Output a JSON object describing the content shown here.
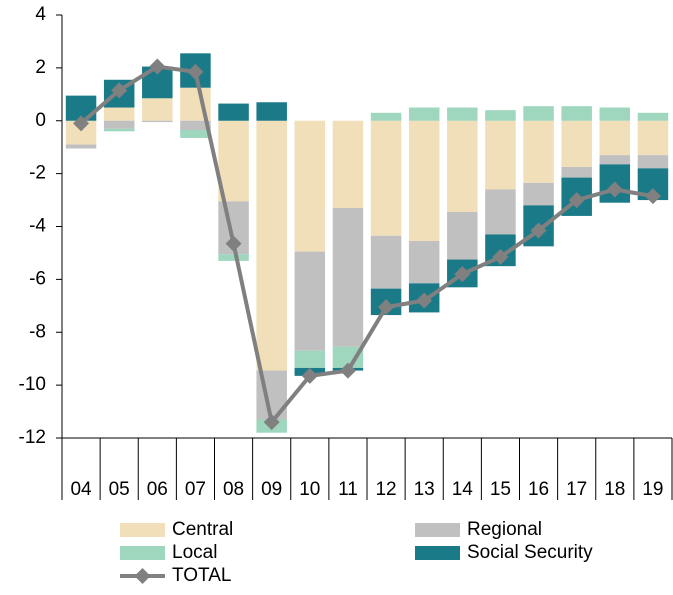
{
  "chart_data": {
    "type": "bar",
    "stacked": true,
    "categories": [
      "04",
      "05",
      "06",
      "07",
      "08",
      "09",
      "10",
      "11",
      "12",
      "13",
      "14",
      "15",
      "16",
      "17",
      "18",
      "19"
    ],
    "series": [
      {
        "name": "Central",
        "color": "#f0dfb8",
        "values": [
          -0.9,
          0.5,
          0.85,
          1.25,
          -3.05,
          -9.45,
          -4.95,
          -3.3,
          -4.35,
          -4.55,
          -3.45,
          -2.6,
          -2.35,
          -1.75,
          -1.3,
          -1.3
        ]
      },
      {
        "name": "Regional",
        "color": "#c0c0c0",
        "values": [
          -0.15,
          -0.3,
          -0.05,
          -0.35,
          -2.0,
          -1.85,
          -3.75,
          -5.25,
          -2.0,
          -1.6,
          -1.8,
          -1.7,
          -0.85,
          -0.4,
          -0.35,
          -0.5
        ]
      },
      {
        "name": "Local",
        "color": "#9ed6be",
        "values": [
          0,
          -0.1,
          0,
          -0.3,
          -0.25,
          -0.5,
          -0.65,
          -0.8,
          0.3,
          0.5,
          0.5,
          0.4,
          0.55,
          0.55,
          0.5,
          0.3
        ]
      },
      {
        "name": "Social Security",
        "color": "#1a7a88",
        "values": [
          0.95,
          1.05,
          1.2,
          1.3,
          0.65,
          0.7,
          -0.3,
          -0.1,
          -1.0,
          -1.1,
          -1.05,
          -1.2,
          -1.55,
          -1.45,
          -1.45,
          -1.2
        ]
      },
      {
        "name": "TOTAL",
        "color": "#808080",
        "type": "line",
        "values": [
          -0.1,
          1.15,
          2.05,
          1.85,
          -4.65,
          -11.4,
          -9.65,
          -9.45,
          -7.05,
          -6.8,
          -5.8,
          -5.15,
          -4.15,
          -3.0,
          -2.6,
          -2.85
        ]
      }
    ],
    "ylim": [
      -12,
      4
    ],
    "yticks": [
      4,
      2,
      0,
      -2,
      -4,
      -6,
      -8,
      -10,
      -12
    ],
    "legend": "bottom"
  }
}
